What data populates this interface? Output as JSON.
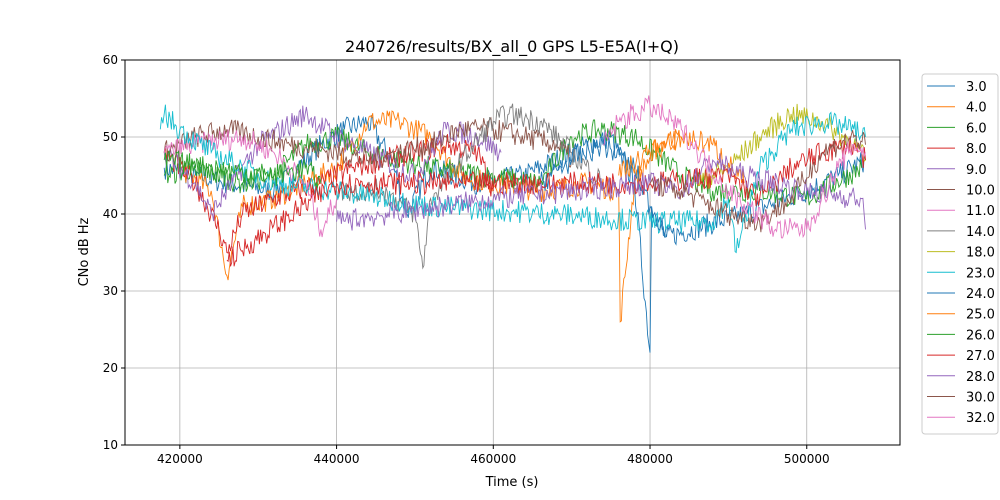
{
  "chart_data": {
    "type": "line",
    "title": "240726/results/BX_all_0 GPS L5-E5A(I+Q)",
    "xlabel": "Time (s)",
    "ylabel": "CNo dB Hz",
    "xlim": [
      413000,
      511900
    ],
    "ylim": [
      10,
      60
    ],
    "xticks": [
      420000,
      440000,
      460000,
      480000,
      500000
    ],
    "xtick_labels": [
      "420000",
      "440000",
      "460000",
      "480000",
      "500000"
    ],
    "yticks": [
      10,
      20,
      30,
      40,
      50,
      60
    ],
    "ytick_labels": [
      "10",
      "20",
      "30",
      "40",
      "50",
      "60"
    ],
    "grid": true,
    "legend_position": "outside-right",
    "series": [
      {
        "name": "3.0",
        "color": "#1f77b4",
        "x": [
          418000,
          422000,
          426000,
          432000,
          438000,
          441000,
          444000,
          447000,
          449000,
          452000,
          458000,
          464000,
          468000,
          472000,
          475000,
          478000,
          480000,
          480200,
          482000,
          482100,
          492000,
          500000,
          504000,
          507500
        ],
        "y": [
          46,
          45,
          44,
          43,
          49,
          51,
          52,
          47,
          40,
          46,
          44,
          45,
          47,
          49,
          50,
          44,
          22,
          41,
          37,
          37,
          40,
          43,
          45,
          47
        ]
      },
      {
        "name": "4.0",
        "color": "#ff7f0e",
        "x": [
          420000,
          424000,
          426000,
          428000,
          432000,
          436000,
          440000,
          444000,
          448000,
          452000,
          456000,
          460000,
          466000,
          472000,
          476000,
          476200,
          478000,
          481000,
          484000
        ],
        "y": [
          46,
          43,
          32,
          41,
          42,
          44,
          46,
          52,
          52,
          50,
          45,
          44,
          43,
          44,
          43,
          26,
          44,
          49,
          50
        ]
      },
      {
        "name": "6.0",
        "color": "#2ca02c",
        "x": [
          418000,
          422000,
          428000,
          432000,
          436000,
          440000,
          444000,
          448000,
          452000,
          466000,
          470000,
          474000,
          478000,
          484000,
          488000,
          494000,
          500000,
          507000
        ],
        "y": [
          45,
          46,
          44,
          45,
          49,
          50,
          48,
          47,
          46,
          44,
          50,
          51,
          50,
          45,
          43,
          43,
          42,
          46
        ]
      },
      {
        "name": "8.0",
        "color": "#d62728",
        "x": [
          418000,
          422000,
          425000,
          426000,
          428000,
          432000,
          438000,
          442000,
          446000,
          450000,
          454000,
          458000,
          460000
        ],
        "y": [
          48,
          44,
          38,
          35,
          40,
          42,
          44,
          46,
          47,
          48,
          49,
          48,
          43
        ]
      },
      {
        "name": "9.0",
        "color": "#9467bd",
        "x": [
          418000,
          422000,
          424000,
          430000,
          436000,
          440000,
          444000,
          450000,
          454000,
          458000,
          461000
        ],
        "y": [
          48,
          44,
          40,
          49,
          53,
          50,
          48,
          45,
          51,
          50,
          48
        ]
      },
      {
        "name": "10.0",
        "color": "#8c564b",
        "x": [
          418000,
          422000,
          426000,
          430000,
          434000,
          440000,
          444000,
          452000,
          456000,
          460000,
          464000,
          468000,
          470000
        ],
        "y": [
          48,
          50,
          51,
          50,
          49,
          48,
          47,
          49,
          51,
          51,
          50,
          49,
          47
        ]
      },
      {
        "name": "11.0",
        "color": "#e377c2",
        "x": [
          418000,
          422000,
          428000,
          432000,
          436000,
          438000,
          440000
        ],
        "y": [
          48,
          49,
          50,
          48,
          44,
          38,
          42
        ]
      },
      {
        "name": "14.0",
        "color": "#7f7f7f",
        "x": [
          440000,
          446000,
          450000,
          451000,
          452000,
          456000,
          460000,
          462000,
          466000,
          470000,
          474000
        ],
        "y": [
          43,
          43,
          40,
          33,
          42,
          47,
          52,
          53,
          52,
          48,
          44
        ]
      },
      {
        "name": "18.0",
        "color": "#bcbd22",
        "x": [
          486000,
          490000,
          494000,
          498000,
          502000,
          506000,
          507500
        ],
        "y": [
          44,
          46,
          50,
          53,
          52,
          49,
          47
        ]
      },
      {
        "name": "23.0",
        "color": "#17becf",
        "x": [
          417500,
          418000,
          420000,
          424000,
          428000,
          432000,
          440000,
          452000,
          468000,
          480000,
          488000,
          490000,
          491000,
          494000,
          498000,
          502000,
          506000,
          507500
        ],
        "y": [
          51,
          53,
          51,
          48,
          46,
          44,
          43,
          41,
          40,
          39,
          39,
          42,
          35,
          46,
          51,
          52,
          51,
          50
        ]
      },
      {
        "name": "24.0",
        "color": "#1f77b4",
        "x": [
          466000,
          470000,
          474000,
          478000,
          480000,
          482000
        ],
        "y": [
          44,
          47,
          49,
          46,
          41,
          38
        ]
      },
      {
        "name": "25.0",
        "color": "#ff7f0e",
        "x": [
          476000,
          480000,
          484000,
          488000,
          492000
        ],
        "y": [
          45,
          48,
          50,
          49,
          44
        ]
      },
      {
        "name": "26.0",
        "color": "#2ca02c",
        "x": [
          418000,
          424000,
          432000,
          436000,
          438000
        ],
        "y": [
          47,
          46,
          45,
          46,
          44
        ]
      },
      {
        "name": "27.0",
        "color": "#d62728",
        "x": [
          426000,
          440000,
          456000,
          470000,
          480000,
          490000,
          494000,
          498000,
          502000,
          506000,
          507500
        ],
        "y": [
          34,
          44,
          44,
          44,
          44,
          45,
          42,
          46,
          48,
          49,
          47
        ]
      },
      {
        "name": "28.0",
        "color": "#9467bd",
        "x": [
          440000,
          460000,
          480000,
          484000,
          488000,
          492000,
          500000,
          507000,
          507500
        ],
        "y": [
          39,
          42,
          44,
          43,
          47,
          45,
          43,
          42,
          38
        ]
      },
      {
        "name": "30.0",
        "color": "#8c564b",
        "x": [
          480000,
          484000,
          490000,
          494000,
          498000,
          502000,
          506000,
          507500
        ],
        "y": [
          44,
          43,
          40,
          39,
          42,
          48,
          50,
          49
        ]
      },
      {
        "name": "32.0",
        "color": "#e377c2",
        "x": [
          474000,
          476000,
          480000,
          484000,
          490000,
          496000,
          500000,
          504000,
          506000,
          507500
        ],
        "y": [
          49,
          52,
          54,
          51,
          43,
          38,
          38,
          46,
          49,
          48
        ]
      }
    ]
  }
}
